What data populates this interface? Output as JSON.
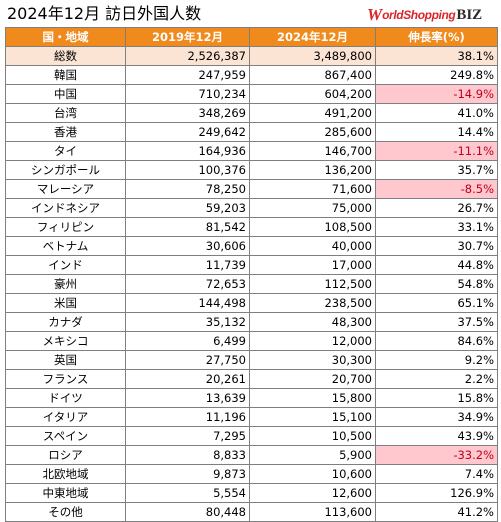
{
  "header": {
    "title": "2024年12月 訪日外国人数",
    "logo": {
      "mark": "W",
      "text": "orldShopping",
      "biz": "BIZ"
    }
  },
  "table": {
    "columns": [
      "国・地域",
      "2019年12月",
      "2024年12月",
      "伸長率(%)"
    ],
    "rows": [
      {
        "region": "総数",
        "y2019": "2,526,387",
        "y2024": "3,489,800",
        "growth": "38.1%",
        "total": true
      },
      {
        "region": "韓国",
        "y2019": "247,959",
        "y2024": "867,400",
        "growth": "249.8%"
      },
      {
        "region": "中国",
        "y2019": "710,234",
        "y2024": "604,200",
        "growth": "-14.9%",
        "negative": true
      },
      {
        "region": "台湾",
        "y2019": "348,269",
        "y2024": "491,200",
        "growth": "41.0%"
      },
      {
        "region": "香港",
        "y2019": "249,642",
        "y2024": "285,600",
        "growth": "14.4%"
      },
      {
        "region": "タイ",
        "y2019": "164,936",
        "y2024": "146,700",
        "growth": "-11.1%",
        "negative": true
      },
      {
        "region": "シンガポール",
        "y2019": "100,376",
        "y2024": "136,200",
        "growth": "35.7%"
      },
      {
        "region": "マレーシア",
        "y2019": "78,250",
        "y2024": "71,600",
        "growth": "-8.5%",
        "negative": true
      },
      {
        "region": "インドネシア",
        "y2019": "59,203",
        "y2024": "75,000",
        "growth": "26.7%"
      },
      {
        "region": "フィリピン",
        "y2019": "81,542",
        "y2024": "108,500",
        "growth": "33.1%"
      },
      {
        "region": "ベトナム",
        "y2019": "30,606",
        "y2024": "40,000",
        "growth": "30.7%"
      },
      {
        "region": "インド",
        "y2019": "11,739",
        "y2024": "17,000",
        "growth": "44.8%"
      },
      {
        "region": "豪州",
        "y2019": "72,653",
        "y2024": "112,500",
        "growth": "54.8%"
      },
      {
        "region": "米国",
        "y2019": "144,498",
        "y2024": "238,500",
        "growth": "65.1%"
      },
      {
        "region": "カナダ",
        "y2019": "35,132",
        "y2024": "48,300",
        "growth": "37.5%"
      },
      {
        "region": "メキシコ",
        "y2019": "6,499",
        "y2024": "12,000",
        "growth": "84.6%"
      },
      {
        "region": "英国",
        "y2019": "27,750",
        "y2024": "30,300",
        "growth": "9.2%"
      },
      {
        "region": "フランス",
        "y2019": "20,261",
        "y2024": "20,700",
        "growth": "2.2%"
      },
      {
        "region": "ドイツ",
        "y2019": "13,639",
        "y2024": "15,800",
        "growth": "15.8%"
      },
      {
        "region": "イタリア",
        "y2019": "11,196",
        "y2024": "15,100",
        "growth": "34.9%"
      },
      {
        "region": "スペイン",
        "y2019": "7,295",
        "y2024": "10,500",
        "growth": "43.9%"
      },
      {
        "region": "ロシア",
        "y2019": "8,833",
        "y2024": "5,900",
        "growth": "-33.2%",
        "negative": true
      },
      {
        "region": "北欧地域",
        "y2019": "9,873",
        "y2024": "10,600",
        "growth": "7.4%"
      },
      {
        "region": "中東地域",
        "y2019": "5,554",
        "y2024": "12,600",
        "growth": "126.9%"
      },
      {
        "region": "その他",
        "y2019": "80,448",
        "y2024": "113,600",
        "growth": "41.2%"
      }
    ]
  }
}
